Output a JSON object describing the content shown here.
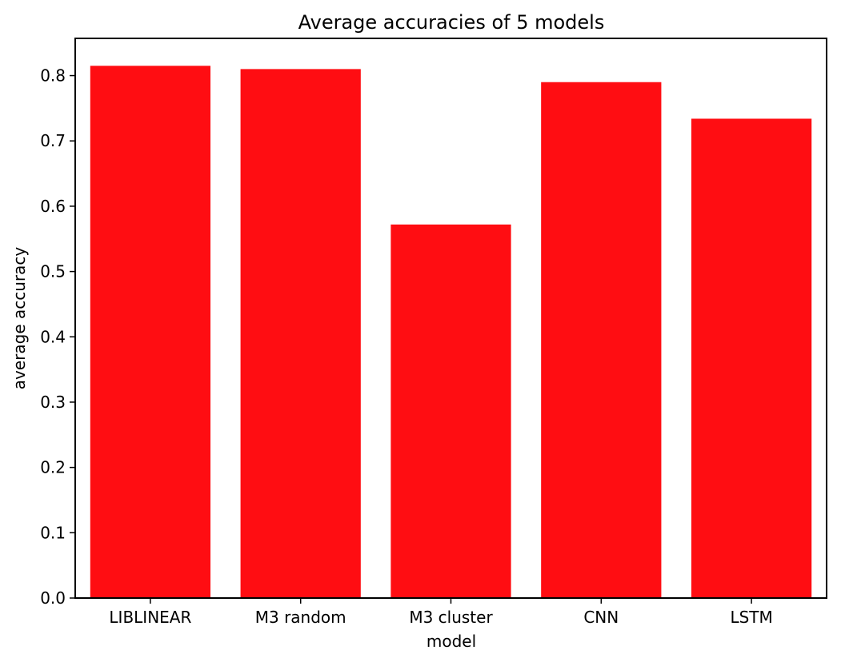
{
  "chart_data": {
    "type": "bar",
    "title": "Average accuracies of 5 models",
    "xlabel": "model",
    "ylabel": "average accuracy",
    "categories": [
      "LIBLINEAR",
      "M3 random",
      "M3 cluster",
      "CNN",
      "LSTM"
    ],
    "values": [
      0.815,
      0.81,
      0.572,
      0.79,
      0.734
    ],
    "ylim": [
      0,
      0.857
    ],
    "yticks": [
      0.0,
      0.1,
      0.2,
      0.3,
      0.4,
      0.5,
      0.6,
      0.7,
      0.8
    ],
    "ytick_labels": [
      "0.0",
      "0.1",
      "0.2",
      "0.3",
      "0.4",
      "0.5",
      "0.6",
      "0.7",
      "0.8"
    ],
    "bar_color": "#ff0d12",
    "grid": false,
    "legend": "none"
  }
}
